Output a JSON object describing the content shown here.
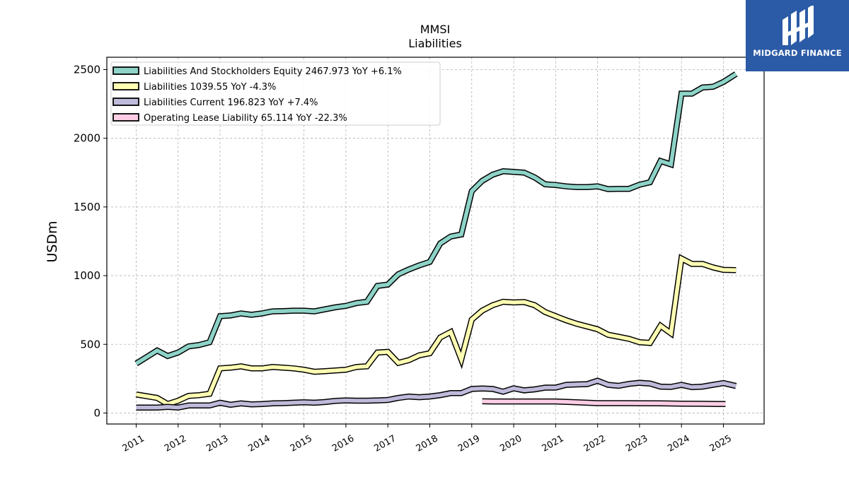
{
  "brand": {
    "name": "MIDGARD FINANCE"
  },
  "chart_data": {
    "type": "line",
    "title": "MMSI",
    "subtitle": "Liabilities",
    "ylabel": "USDm",
    "xlabel": "",
    "ylim": [
      -80,
      2590
    ],
    "xlim": [
      2010.3,
      2025.97
    ],
    "yticks": [
      0,
      500,
      1000,
      1500,
      2000,
      2500
    ],
    "xticks": [
      "2011",
      "2012",
      "2013",
      "2014",
      "2015",
      "2016",
      "2017",
      "2018",
      "2019",
      "2020",
      "2021",
      "2022",
      "2023",
      "2024",
      "2025"
    ],
    "grid": true,
    "legend_position": "top-left",
    "series": [
      {
        "name": "Liabilities And Stockholders Equity",
        "legend": "Liabilities And Stockholders Equity  2467.973 YoY +6.1%",
        "color": "#8dd3c7",
        "points": [
          [
            2011.0,
            360
          ],
          [
            2011.5,
            455
          ],
          [
            2011.75,
            415
          ],
          [
            2012.0,
            440
          ],
          [
            2012.25,
            485
          ],
          [
            2012.5,
            495
          ],
          [
            2012.75,
            515
          ],
          [
            2013.0,
            705
          ],
          [
            2013.25,
            710
          ],
          [
            2013.5,
            725
          ],
          [
            2013.75,
            715
          ],
          [
            2014.0,
            725
          ],
          [
            2014.25,
            740
          ],
          [
            2014.5,
            742
          ],
          [
            2014.75,
            745
          ],
          [
            2015.0,
            745
          ],
          [
            2015.25,
            740
          ],
          [
            2015.5,
            755
          ],
          [
            2015.75,
            770
          ],
          [
            2016.0,
            780
          ],
          [
            2016.25,
            800
          ],
          [
            2016.5,
            810
          ],
          [
            2016.75,
            925
          ],
          [
            2017.0,
            935
          ],
          [
            2017.25,
            1010
          ],
          [
            2017.5,
            1045
          ],
          [
            2017.75,
            1075
          ],
          [
            2018.0,
            1100
          ],
          [
            2018.25,
            1235
          ],
          [
            2018.5,
            1285
          ],
          [
            2018.75,
            1300
          ],
          [
            2019.0,
            1615
          ],
          [
            2019.25,
            1690
          ],
          [
            2019.5,
            1735
          ],
          [
            2019.75,
            1760
          ],
          [
            2020.0,
            1755
          ],
          [
            2020.25,
            1750
          ],
          [
            2020.5,
            1715
          ],
          [
            2020.75,
            1665
          ],
          [
            2021.0,
            1660
          ],
          [
            2021.25,
            1650
          ],
          [
            2021.5,
            1645
          ],
          [
            2021.75,
            1645
          ],
          [
            2022.0,
            1650
          ],
          [
            2022.25,
            1630
          ],
          [
            2022.5,
            1632
          ],
          [
            2022.75,
            1632
          ],
          [
            2023.0,
            1662
          ],
          [
            2023.25,
            1680
          ],
          [
            2023.5,
            1835
          ],
          [
            2023.75,
            1810
          ],
          [
            2024.0,
            2325
          ],
          [
            2024.25,
            2325
          ],
          [
            2024.5,
            2370
          ],
          [
            2024.75,
            2375
          ],
          [
            2025.0,
            2410
          ],
          [
            2025.3,
            2468
          ]
        ]
      },
      {
        "name": "Liabilities",
        "legend": "Liabilities  1039.55 YoY -4.3%",
        "color": "#ffffb3",
        "points": [
          [
            2011.0,
            135
          ],
          [
            2011.5,
            110
          ],
          [
            2011.75,
            65
          ],
          [
            2012.0,
            90
          ],
          [
            2012.25,
            125
          ],
          [
            2012.5,
            130
          ],
          [
            2012.75,
            140
          ],
          [
            2013.0,
            325
          ],
          [
            2013.25,
            330
          ],
          [
            2013.5,
            340
          ],
          [
            2013.75,
            325
          ],
          [
            2014.0,
            325
          ],
          [
            2014.25,
            335
          ],
          [
            2014.5,
            330
          ],
          [
            2014.75,
            325
          ],
          [
            2015.0,
            315
          ],
          [
            2015.25,
            300
          ],
          [
            2015.5,
            305
          ],
          [
            2015.75,
            310
          ],
          [
            2016.0,
            315
          ],
          [
            2016.25,
            335
          ],
          [
            2016.5,
            340
          ],
          [
            2016.75,
            440
          ],
          [
            2017.0,
            445
          ],
          [
            2017.25,
            365
          ],
          [
            2017.5,
            385
          ],
          [
            2017.75,
            420
          ],
          [
            2018.0,
            435
          ],
          [
            2018.25,
            550
          ],
          [
            2018.5,
            590
          ],
          [
            2018.75,
            390
          ],
          [
            2019.0,
            680
          ],
          [
            2019.25,
            745
          ],
          [
            2019.5,
            785
          ],
          [
            2019.75,
            810
          ],
          [
            2020.0,
            805
          ],
          [
            2020.25,
            808
          ],
          [
            2020.5,
            785
          ],
          [
            2020.75,
            735
          ],
          [
            2021.0,
            705
          ],
          [
            2021.25,
            675
          ],
          [
            2021.5,
            650
          ],
          [
            2021.75,
            630
          ],
          [
            2022.0,
            610
          ],
          [
            2022.25,
            570
          ],
          [
            2022.5,
            555
          ],
          [
            2022.75,
            540
          ],
          [
            2023.0,
            515
          ],
          [
            2023.25,
            510
          ],
          [
            2023.5,
            635
          ],
          [
            2023.75,
            580
          ],
          [
            2024.0,
            1125
          ],
          [
            2024.25,
            1085
          ],
          [
            2024.5,
            1085
          ],
          [
            2024.75,
            1060
          ],
          [
            2025.0,
            1042
          ],
          [
            2025.3,
            1040
          ]
        ]
      },
      {
        "name": "Liabilities Current",
        "legend": "Liabilities Current  196.823 YoY +7.4%",
        "color": "#bebada",
        "points": [
          [
            2011.0,
            40
          ],
          [
            2011.5,
            40
          ],
          [
            2011.75,
            45
          ],
          [
            2012.0,
            40
          ],
          [
            2012.25,
            55
          ],
          [
            2012.5,
            55
          ],
          [
            2012.75,
            55
          ],
          [
            2013.0,
            75
          ],
          [
            2013.25,
            60
          ],
          [
            2013.5,
            70
          ],
          [
            2013.75,
            63
          ],
          [
            2014.0,
            65
          ],
          [
            2014.25,
            70
          ],
          [
            2014.5,
            72
          ],
          [
            2014.75,
            75
          ],
          [
            2015.0,
            78
          ],
          [
            2015.25,
            75
          ],
          [
            2015.5,
            80
          ],
          [
            2015.75,
            88
          ],
          [
            2016.0,
            92
          ],
          [
            2016.25,
            90
          ],
          [
            2016.5,
            90
          ],
          [
            2016.75,
            92
          ],
          [
            2017.0,
            95
          ],
          [
            2017.25,
            110
          ],
          [
            2017.5,
            120
          ],
          [
            2017.75,
            115
          ],
          [
            2018.0,
            120
          ],
          [
            2018.25,
            130
          ],
          [
            2018.5,
            145
          ],
          [
            2018.75,
            145
          ],
          [
            2019.0,
            175
          ],
          [
            2019.25,
            178
          ],
          [
            2019.5,
            175
          ],
          [
            2019.75,
            155
          ],
          [
            2020.0,
            180
          ],
          [
            2020.25,
            165
          ],
          [
            2020.5,
            172
          ],
          [
            2020.75,
            185
          ],
          [
            2021.0,
            185
          ],
          [
            2021.25,
            205
          ],
          [
            2021.5,
            208
          ],
          [
            2021.75,
            210
          ],
          [
            2022.0,
            235
          ],
          [
            2022.25,
            205
          ],
          [
            2022.5,
            198
          ],
          [
            2022.75,
            212
          ],
          [
            2023.0,
            220
          ],
          [
            2023.25,
            215
          ],
          [
            2023.5,
            192
          ],
          [
            2023.75,
            190
          ],
          [
            2024.0,
            205
          ],
          [
            2024.25,
            188
          ],
          [
            2024.5,
            192
          ],
          [
            2024.75,
            205
          ],
          [
            2025.0,
            218
          ],
          [
            2025.3,
            197
          ]
        ]
      },
      {
        "name": "Operating Lease Liability",
        "legend": "Operating Lease Liability  65.114 YoY -22.3%",
        "color": "#fccde5",
        "points": [
          [
            2019.25,
            85
          ],
          [
            2019.5,
            84
          ],
          [
            2019.75,
            84
          ],
          [
            2020.0,
            84
          ],
          [
            2020.25,
            84
          ],
          [
            2020.5,
            84
          ],
          [
            2020.75,
            84
          ],
          [
            2021.0,
            84
          ],
          [
            2021.5,
            78
          ],
          [
            2022.0,
            72
          ],
          [
            2022.5,
            72
          ],
          [
            2023.0,
            71
          ],
          [
            2023.5,
            70
          ],
          [
            2024.0,
            68
          ],
          [
            2024.5,
            67
          ],
          [
            2025.05,
            65
          ]
        ]
      }
    ]
  }
}
